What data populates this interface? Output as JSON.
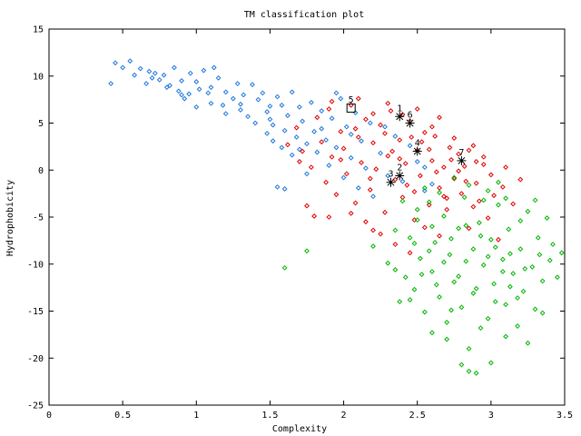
{
  "chart_data": {
    "type": "scatter",
    "title": "TM classification plot",
    "xlabel": "Complexity",
    "ylabel": "Hydrophobicity",
    "xlim": [
      0,
      3.5
    ],
    "ylim": [
      -25,
      15
    ],
    "xticks": [
      "0",
      "0.5",
      "1",
      "1.5",
      "2",
      "2.5",
      "3",
      "3.5"
    ],
    "yticks": [
      "15",
      "10",
      "5",
      "0",
      "-5",
      "-10",
      "-15",
      "-20",
      "-25"
    ],
    "grid": false,
    "legend": "none",
    "series": [
      {
        "color": "#1e78dc",
        "marker": "diamond",
        "points": [
          [
            0.42,
            9.2
          ],
          [
            0.45,
            11.4
          ],
          [
            0.5,
            10.9
          ],
          [
            0.55,
            11.6
          ],
          [
            0.58,
            10.1
          ],
          [
            0.62,
            10.8
          ],
          [
            0.66,
            9.2
          ],
          [
            0.68,
            10.5
          ],
          [
            0.72,
            10.3
          ],
          [
            0.75,
            9.6
          ],
          [
            0.78,
            10.1
          ],
          [
            0.82,
            9.0
          ],
          [
            0.85,
            10.9
          ],
          [
            0.88,
            8.4
          ],
          [
            0.9,
            9.5
          ],
          [
            0.92,
            7.6
          ],
          [
            0.95,
            8.1
          ],
          [
            0.96,
            10.3
          ],
          [
            1.0,
            9.4
          ],
          [
            1.02,
            8.6
          ],
          [
            1.05,
            10.6
          ],
          [
            1.08,
            8.2
          ],
          [
            1.1,
            7.1
          ],
          [
            1.12,
            10.9
          ],
          [
            1.15,
            9.8
          ],
          [
            1.18,
            6.9
          ],
          [
            1.2,
            8.3
          ],
          [
            1.25,
            7.6
          ],
          [
            1.28,
            9.2
          ],
          [
            1.3,
            6.4
          ],
          [
            1.32,
            8.0
          ],
          [
            1.35,
            5.7
          ],
          [
            1.38,
            9.1
          ],
          [
            1.42,
            7.5
          ],
          [
            1.45,
            8.2
          ],
          [
            1.48,
            6.2
          ],
          [
            1.5,
            5.4
          ],
          [
            1.52,
            4.8
          ],
          [
            1.55,
            7.8
          ],
          [
            1.58,
            6.9
          ],
          [
            1.6,
            4.2
          ],
          [
            1.62,
            5.8
          ],
          [
            1.65,
            8.3
          ],
          [
            1.68,
            3.5
          ],
          [
            1.7,
            6.7
          ],
          [
            1.72,
            5.2
          ],
          [
            1.75,
            2.8
          ],
          [
            1.78,
            7.2
          ],
          [
            1.8,
            4.1
          ],
          [
            1.82,
            1.9
          ],
          [
            1.85,
            6.3
          ],
          [
            1.88,
            3.2
          ],
          [
            1.9,
            0.5
          ],
          [
            1.92,
            5.5
          ],
          [
            1.95,
            2.4
          ],
          [
            1.98,
            7.6
          ],
          [
            2.0,
            -0.8
          ],
          [
            2.02,
            4.6
          ],
          [
            2.05,
            1.3
          ],
          [
            2.08,
            6.1
          ],
          [
            2.1,
            -1.9
          ],
          [
            2.12,
            3.1
          ],
          [
            2.15,
            0.2
          ],
          [
            2.18,
            5.0
          ],
          [
            2.2,
            -2.8
          ],
          [
            2.25,
            1.8
          ],
          [
            2.3,
            -0.6
          ],
          [
            2.35,
            3.6
          ],
          [
            2.4,
            -1.2
          ],
          [
            2.5,
            0.9
          ],
          [
            2.55,
            -2.2
          ],
          [
            2.6,
            -1.5
          ],
          [
            1.48,
            3.9
          ],
          [
            1.55,
            -1.8
          ],
          [
            1.6,
            -2.0
          ],
          [
            1.65,
            1.6
          ],
          [
            1.7,
            2.2
          ],
          [
            1.75,
            -0.4
          ],
          [
            1.5,
            6.8
          ],
          [
            1.52,
            3.1
          ],
          [
            0.7,
            9.8
          ],
          [
            0.8,
            8.8
          ],
          [
            0.9,
            8.0
          ],
          [
            1.0,
            6.7
          ],
          [
            1.1,
            8.8
          ],
          [
            1.2,
            6.0
          ],
          [
            1.3,
            7.0
          ],
          [
            1.4,
            5.0
          ],
          [
            1.58,
            2.4
          ],
          [
            1.85,
            4.4
          ],
          [
            1.95,
            8.2
          ],
          [
            2.05,
            3.8
          ],
          [
            2.28,
            4.6
          ],
          [
            2.45,
            2.6
          ],
          [
            2.55,
            0.3
          ]
        ]
      },
      {
        "color": "#e00000",
        "marker": "diamond",
        "points": [
          [
            1.68,
            4.5
          ],
          [
            1.72,
            2.0
          ],
          [
            1.78,
            0.3
          ],
          [
            1.82,
            5.6
          ],
          [
            1.85,
            3.0
          ],
          [
            1.88,
            -1.3
          ],
          [
            1.9,
            6.5
          ],
          [
            1.92,
            1.4
          ],
          [
            1.95,
            -2.6
          ],
          [
            1.98,
            4.1
          ],
          [
            2.0,
            2.3
          ],
          [
            2.02,
            -0.4
          ],
          [
            2.05,
            6.9
          ],
          [
            2.08,
            -3.5
          ],
          [
            2.1,
            3.5
          ],
          [
            2.12,
            0.8
          ],
          [
            2.15,
            5.4
          ],
          [
            2.18,
            -2.1
          ],
          [
            2.2,
            2.9
          ],
          [
            2.22,
            0.1
          ],
          [
            2.25,
            4.8
          ],
          [
            2.28,
            -4.5
          ],
          [
            2.3,
            1.5
          ],
          [
            2.32,
            6.3
          ],
          [
            2.35,
            -1.0
          ],
          [
            2.38,
            3.2
          ],
          [
            2.4,
            -2.9
          ],
          [
            2.42,
            0.7
          ],
          [
            2.45,
            5.2
          ],
          [
            2.48,
            -5.3
          ],
          [
            2.5,
            2.1
          ],
          [
            2.52,
            -0.6
          ],
          [
            2.55,
            4.0
          ],
          [
            2.58,
            -3.7
          ],
          [
            2.6,
            1.0
          ],
          [
            2.62,
            3.6
          ],
          [
            2.65,
            -1.9
          ],
          [
            2.68,
            0.3
          ],
          [
            2.7,
            -4.2
          ],
          [
            2.72,
            2.4
          ],
          [
            2.75,
            -0.9
          ],
          [
            2.78,
            1.7
          ],
          [
            2.8,
            -2.5
          ],
          [
            2.82,
            0.4
          ],
          [
            2.85,
            -6.2
          ],
          [
            2.88,
            2.6
          ],
          [
            2.9,
            -1.4
          ],
          [
            2.92,
            -3.3
          ],
          [
            2.95,
            0.6
          ],
          [
            2.98,
            -5.1
          ],
          [
            3.0,
            -0.5
          ],
          [
            3.02,
            -2.7
          ],
          [
            3.05,
            -7.4
          ],
          [
            3.08,
            -1.8
          ],
          [
            3.1,
            0.3
          ],
          [
            2.15,
            -5.5
          ],
          [
            2.25,
            -6.8
          ],
          [
            2.35,
            -7.9
          ],
          [
            2.45,
            -8.8
          ],
          [
            2.2,
            -6.4
          ],
          [
            1.75,
            -3.8
          ],
          [
            1.8,
            -4.9
          ],
          [
            1.9,
            -5.0
          ],
          [
            2.05,
            -4.6
          ],
          [
            2.4,
            5.9
          ],
          [
            2.5,
            6.5
          ],
          [
            2.6,
            4.6
          ],
          [
            2.65,
            5.6
          ],
          [
            2.3,
            7.1
          ],
          [
            2.2,
            6.0
          ],
          [
            2.1,
            7.6
          ],
          [
            2.75,
            3.4
          ],
          [
            2.85,
            2.1
          ],
          [
            2.95,
            1.4
          ],
          [
            3.15,
            -3.6
          ],
          [
            3.2,
            -1.0
          ],
          [
            2.55,
            -6.1
          ],
          [
            2.65,
            -7.0
          ],
          [
            2.7,
            -3.0
          ],
          [
            2.33,
            2.0
          ],
          [
            2.43,
            -1.6
          ],
          [
            2.53,
            3.0
          ],
          [
            2.63,
            -0.2
          ],
          [
            2.73,
            1.1
          ],
          [
            2.83,
            -1.2
          ],
          [
            2.9,
            0.9
          ],
          [
            1.98,
            1.1
          ],
          [
            2.08,
            4.4
          ],
          [
            2.18,
            -0.9
          ],
          [
            2.28,
            3.9
          ],
          [
            2.38,
            1.2
          ],
          [
            2.48,
            -2.3
          ],
          [
            2.58,
            2.2
          ],
          [
            2.68,
            -2.8
          ],
          [
            2.78,
            -0.1
          ],
          [
            2.88,
            -3.9
          ],
          [
            1.62,
            2.7
          ],
          [
            1.7,
            0.9
          ],
          [
            1.92,
            7.3
          ],
          [
            2.46,
            3.5
          ]
        ]
      },
      {
        "color": "#00b400",
        "marker": "diamond",
        "points": [
          [
            1.6,
            -10.4
          ],
          [
            1.75,
            -8.6
          ],
          [
            2.2,
            -8.1
          ],
          [
            2.3,
            -9.9
          ],
          [
            2.35,
            -6.4
          ],
          [
            2.38,
            -14.0
          ],
          [
            2.42,
            -11.4
          ],
          [
            2.45,
            -7.2
          ],
          [
            2.48,
            -12.7
          ],
          [
            2.5,
            -5.3
          ],
          [
            2.52,
            -9.4
          ],
          [
            2.55,
            -15.1
          ],
          [
            2.58,
            -3.4
          ],
          [
            2.6,
            -10.8
          ],
          [
            2.62,
            -7.7
          ],
          [
            2.65,
            -13.5
          ],
          [
            2.68,
            -4.9
          ],
          [
            2.7,
            -16.2
          ],
          [
            2.72,
            -9.0
          ],
          [
            2.75,
            -11.9
          ],
          [
            2.78,
            -6.2
          ],
          [
            2.8,
            -14.6
          ],
          [
            2.82,
            -2.9
          ],
          [
            2.85,
            -19.0
          ],
          [
            2.88,
            -8.4
          ],
          [
            2.9,
            -12.6
          ],
          [
            2.92,
            -5.6
          ],
          [
            2.95,
            -10.1
          ],
          [
            2.98,
            -15.8
          ],
          [
            3.0,
            -7.4
          ],
          [
            3.02,
            -12.1
          ],
          [
            3.05,
            -3.7
          ],
          [
            3.08,
            -9.5
          ],
          [
            3.1,
            -14.3
          ],
          [
            3.12,
            -6.3
          ],
          [
            3.15,
            -11.0
          ],
          [
            3.18,
            -16.6
          ],
          [
            3.2,
            -8.4
          ],
          [
            3.22,
            -12.9
          ],
          [
            3.25,
            -4.4
          ],
          [
            3.28,
            -10.3
          ],
          [
            3.3,
            -14.8
          ],
          [
            3.32,
            -7.2
          ],
          [
            3.35,
            -11.8
          ],
          [
            3.38,
            -5.1
          ],
          [
            3.4,
            -9.6
          ],
          [
            3.45,
            -11.4
          ],
          [
            3.48,
            -8.8
          ],
          [
            2.55,
            -1.9
          ],
          [
            2.65,
            -2.4
          ],
          [
            2.75,
            -0.8
          ],
          [
            2.85,
            -1.6
          ],
          [
            2.95,
            -3.2
          ],
          [
            3.05,
            -1.3
          ],
          [
            2.4,
            -3.3
          ],
          [
            2.5,
            -4.2
          ],
          [
            2.6,
            -6.0
          ],
          [
            2.8,
            -20.7
          ],
          [
            2.9,
            -21.6
          ],
          [
            2.85,
            -21.4
          ],
          [
            3.0,
            -20.5
          ],
          [
            3.1,
            -17.7
          ],
          [
            3.25,
            -18.4
          ],
          [
            2.7,
            -18.0
          ],
          [
            2.6,
            -17.3
          ],
          [
            2.45,
            -13.8
          ],
          [
            2.35,
            -10.6
          ],
          [
            3.35,
            -15.2
          ],
          [
            3.42,
            -7.9
          ],
          [
            3.2,
            -5.4
          ],
          [
            3.1,
            -3.0
          ],
          [
            2.98,
            -2.2
          ],
          [
            3.3,
            -3.2
          ],
          [
            2.68,
            -9.8
          ],
          [
            2.78,
            -11.3
          ],
          [
            2.88,
            -13.1
          ],
          [
            2.98,
            -9.2
          ],
          [
            3.08,
            -10.8
          ],
          [
            3.18,
            -13.6
          ],
          [
            2.58,
            -8.6
          ],
          [
            2.48,
            -7.8
          ],
          [
            2.73,
            -7.3
          ],
          [
            2.83,
            -5.9
          ],
          [
            2.93,
            -7.0
          ],
          [
            3.03,
            -8.2
          ],
          [
            3.13,
            -8.9
          ],
          [
            3.23,
            -10.5
          ],
          [
            3.33,
            -9.0
          ],
          [
            2.63,
            -12.2
          ],
          [
            2.93,
            -16.8
          ],
          [
            3.03,
            -14.0
          ],
          [
            3.13,
            -12.4
          ],
          [
            2.83,
            -9.7
          ],
          [
            2.73,
            -14.9
          ],
          [
            2.53,
            -11.1
          ]
        ]
      }
    ],
    "annotations": [
      {
        "label": "1",
        "x": 2.38,
        "y": 5.7,
        "marker": "star"
      },
      {
        "label": "2",
        "x": 2.38,
        "y": -0.6,
        "marker": "star"
      },
      {
        "label": "3",
        "x": 2.32,
        "y": -1.3,
        "marker": "star"
      },
      {
        "label": "4",
        "x": 2.5,
        "y": 2.0,
        "marker": "star"
      },
      {
        "label": "5",
        "x": 2.05,
        "y": 6.6,
        "marker": "square"
      },
      {
        "label": "6",
        "x": 2.45,
        "y": 5.0,
        "marker": "star"
      },
      {
        "label": "7",
        "x": 2.8,
        "y": 1.0,
        "marker": "star"
      }
    ]
  }
}
